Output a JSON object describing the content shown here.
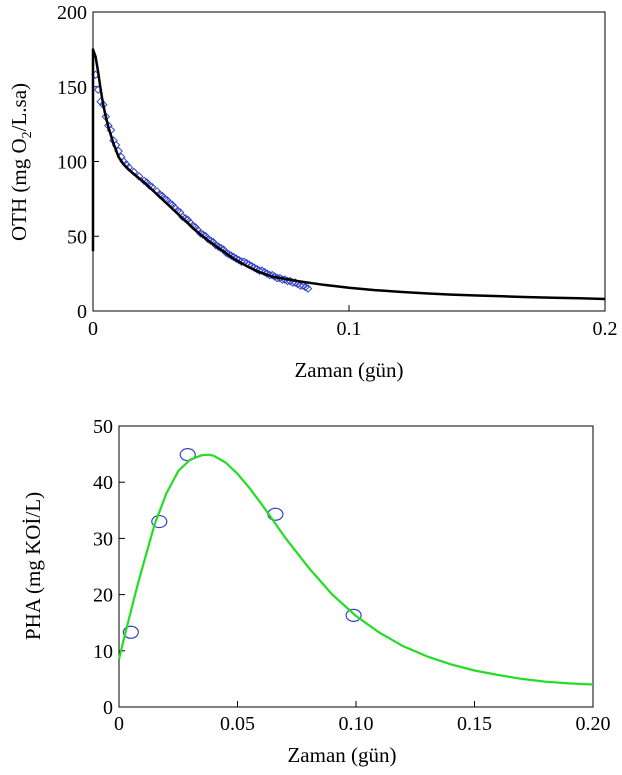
{
  "chart_data": [
    {
      "type": "scatter",
      "xlabel": "Zaman (gün)",
      "ylabel_parts": [
        "OTH (mg O",
        "2",
        "/L.sa)"
      ],
      "xlim": [
        0,
        0.2
      ],
      "ylim": [
        0,
        200
      ],
      "xticks": [
        0,
        0.1,
        0.2
      ],
      "xtick_labels": [
        "0",
        "0.1",
        "0.2"
      ],
      "yticks": [
        0,
        50,
        100,
        150,
        200
      ],
      "ytick_labels": [
        "0",
        "50",
        "100",
        "150",
        "200"
      ],
      "grid": false,
      "series": [
        {
          "kind": "points",
          "marker": "diamond",
          "color": "#3344cc",
          "x": [
            0.001,
            0.002,
            0.003,
            0.004,
            0.005,
            0.006,
            0.007,
            0.008,
            0.009,
            0.01,
            0.011,
            0.012,
            0.013,
            0.014,
            0.016,
            0.018,
            0.02,
            0.021,
            0.022,
            0.023,
            0.025,
            0.026,
            0.027,
            0.028,
            0.029,
            0.03,
            0.031,
            0.032,
            0.033,
            0.034,
            0.035,
            0.036,
            0.037,
            0.038,
            0.039,
            0.04,
            0.041,
            0.042,
            0.043,
            0.044,
            0.045,
            0.046,
            0.047,
            0.048,
            0.049,
            0.05,
            0.051,
            0.052,
            0.053,
            0.054,
            0.055,
            0.056,
            0.057,
            0.058,
            0.059,
            0.06,
            0.061,
            0.062,
            0.063,
            0.064,
            0.065,
            0.066,
            0.067,
            0.068,
            0.069,
            0.07,
            0.071,
            0.072,
            0.073,
            0.074,
            0.075,
            0.076,
            0.077,
            0.078,
            0.079,
            0.08,
            0.081,
            0.082,
            0.083,
            0.084
          ],
          "y": [
            158,
            148,
            140,
            138,
            130,
            124,
            121,
            114,
            111,
            107,
            103,
            100,
            98,
            96,
            93,
            90,
            87,
            86,
            84,
            83,
            80,
            78,
            77,
            75,
            74,
            72,
            71,
            69,
            67,
            66,
            63,
            62,
            61,
            59,
            57,
            56,
            54,
            52,
            51,
            50,
            48,
            47,
            46,
            44,
            43,
            42,
            41,
            39,
            38,
            37,
            36,
            35,
            34,
            33,
            33,
            32,
            31,
            30,
            29,
            28,
            27,
            27,
            26,
            25,
            24,
            24,
            23,
            22,
            22,
            21,
            21,
            20,
            20,
            19,
            19,
            18,
            17,
            17,
            16,
            15
          ]
        },
        {
          "kind": "line",
          "color": "#000000",
          "x": [
            0,
            0,
            0.001,
            0.002,
            0.003,
            0.004,
            0.005,
            0.006,
            0.008,
            0.01,
            0.012,
            0.015,
            0.02,
            0.025,
            0.03,
            0.035,
            0.04,
            0.045,
            0.05,
            0.055,
            0.06,
            0.065,
            0.07,
            0.08,
            0.09,
            0.1,
            0.11,
            0.12,
            0.13,
            0.14,
            0.15,
            0.16,
            0.17,
            0.18,
            0.19,
            0.2
          ],
          "y": [
            40,
            175,
            170,
            160,
            148,
            138,
            130,
            123,
            112,
            103,
            98,
            93,
            86,
            78,
            70,
            62,
            54,
            47,
            41,
            35,
            30,
            26,
            23,
            20,
            17.5,
            15.5,
            14,
            12.8,
            11.8,
            11,
            10.4,
            9.8,
            9.3,
            8.9,
            8.5,
            8
          ]
        }
      ]
    },
    {
      "type": "scatter",
      "xlabel": "Zaman (gün)",
      "ylabel": "PHA (mg KOİ/L)",
      "xlim": [
        0,
        0.2
      ],
      "ylim": [
        0,
        50
      ],
      "xticks": [
        0,
        0.05,
        0.1,
        0.15,
        0.2
      ],
      "xtick_labels": [
        "0",
        "0.05",
        "0.10",
        "0.15",
        "0.20"
      ],
      "yticks": [
        0,
        10,
        20,
        30,
        40,
        50
      ],
      "ytick_labels": [
        "0",
        "10",
        "20",
        "30",
        "40",
        "50"
      ],
      "grid": false,
      "series": [
        {
          "kind": "points",
          "marker": "circle",
          "color": "#3344cc",
          "x": [
            0.005,
            0.017,
            0.029,
            0.066,
            0.099
          ],
          "y": [
            13.3,
            33.0,
            44.9,
            34.3,
            16.3
          ]
        },
        {
          "kind": "line",
          "color": "#22dd22",
          "x": [
            0,
            0.002,
            0.005,
            0.008,
            0.01,
            0.015,
            0.02,
            0.025,
            0.03,
            0.035,
            0.038,
            0.04,
            0.045,
            0.05,
            0.055,
            0.06,
            0.065,
            0.07,
            0.08,
            0.09,
            0.1,
            0.11,
            0.12,
            0.13,
            0.14,
            0.15,
            0.16,
            0.17,
            0.18,
            0.19,
            0.2
          ],
          "y": [
            8.5,
            12,
            17,
            22,
            25,
            32.5,
            38,
            42,
            44,
            44.8,
            44.9,
            44.7,
            43.5,
            41.5,
            39,
            36.2,
            33.2,
            30.2,
            24.8,
            20,
            16.2,
            13.2,
            10.8,
            9.0,
            7.6,
            6.5,
            5.7,
            5.0,
            4.5,
            4.2,
            4.0
          ]
        }
      ]
    }
  ]
}
